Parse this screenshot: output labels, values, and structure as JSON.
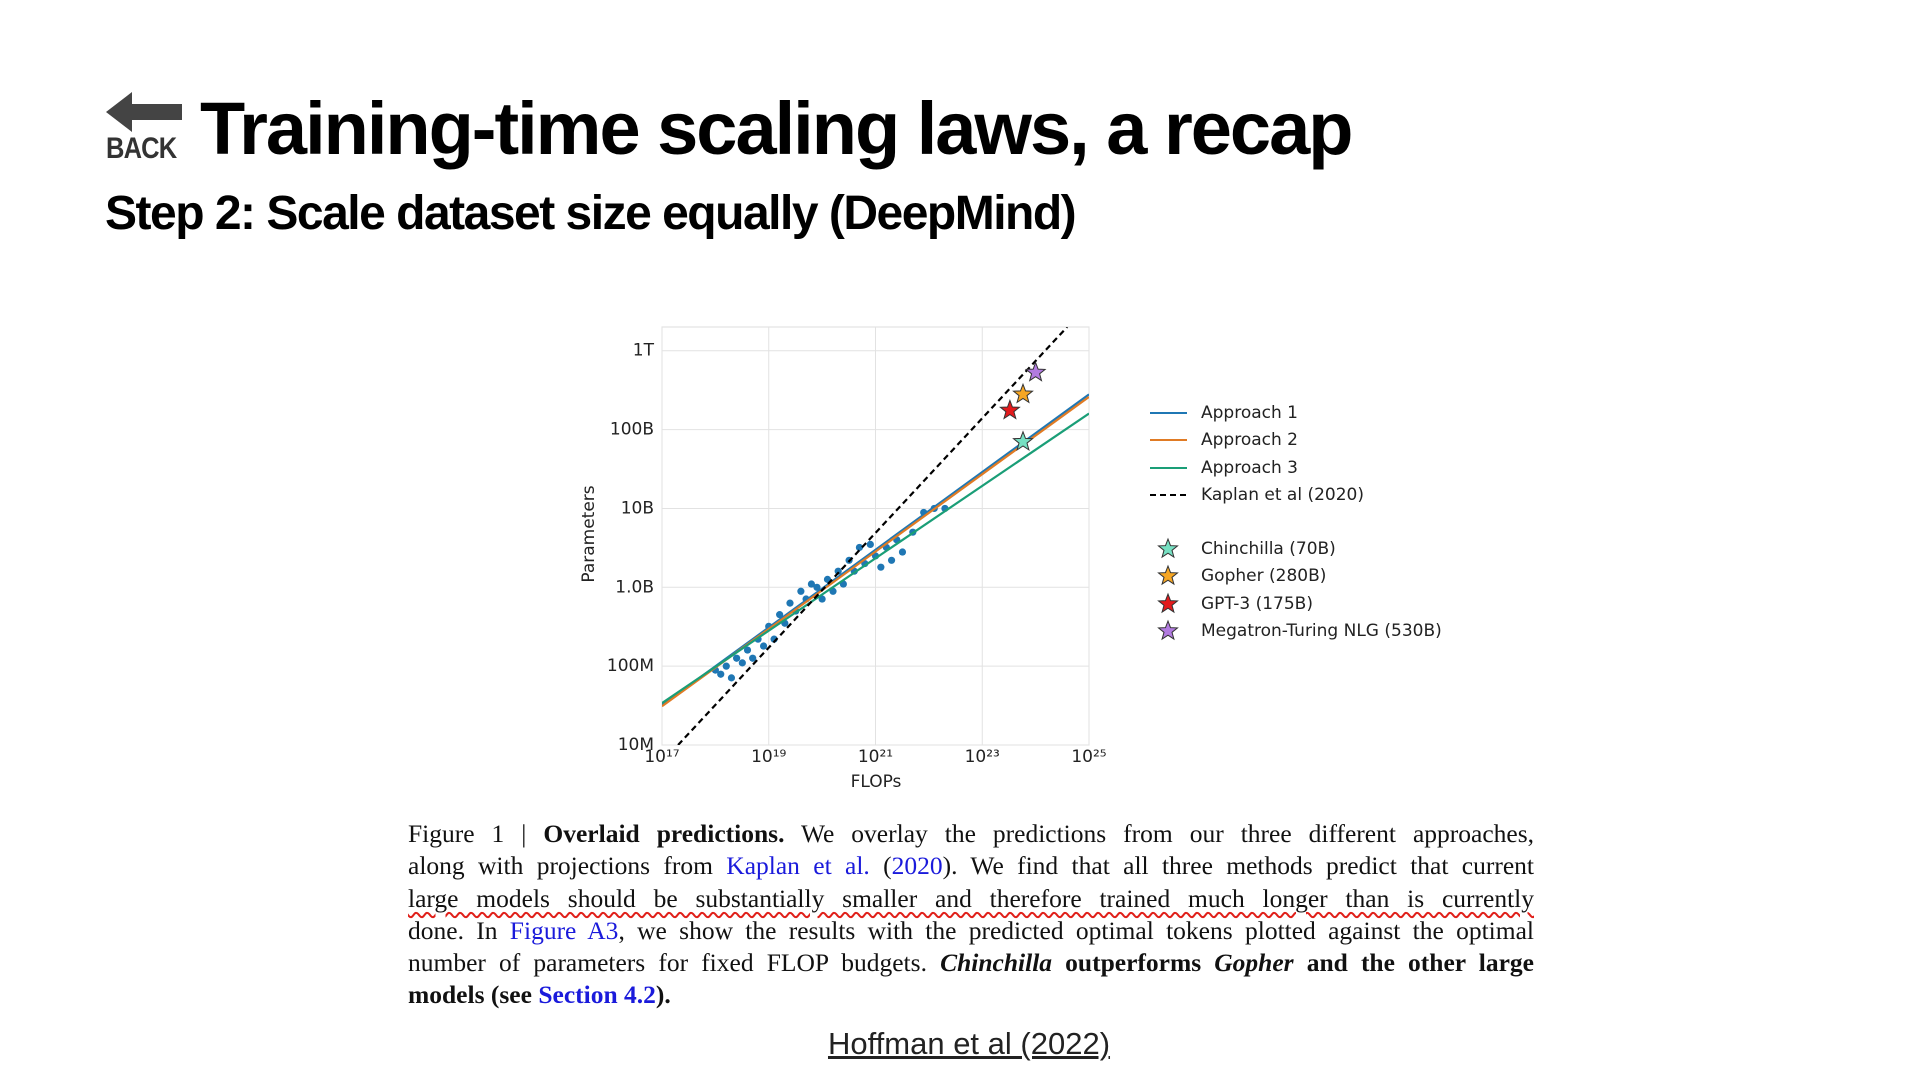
{
  "slide": {
    "back": "BACK",
    "title": "Training-time scaling laws, a recap",
    "subtitle": "Step 2: Scale dataset size equally (DeepMind)",
    "caption": {
      "lines": [
        [
          "Figure 1 | ",
          "Overlaid predictions.",
          " We overlay the predictions from our three different approaches,"
        ],
        [
          "along with projections from ",
          "Kaplan et al.",
          " (",
          "2020",
          "). We find that all three methods predict that current"
        ],
        [
          "large models should be substantially smaller and therefore trained much longer than is currently"
        ],
        [
          "done. In ",
          "Figure A3",
          ", we show the results with the predicted optimal tokens plotted against the optimal"
        ],
        [
          "number of parameters for fixed FLOP budgets. ",
          "Chinchilla",
          " outperforms ",
          "Gopher",
          " and the other large"
        ],
        [
          "models (see ",
          "Section 4.2",
          ")."
        ]
      ]
    },
    "citation": "Hoffman et al (2022)"
  },
  "chart_data": {
    "type": "line",
    "xlabel": "FLOPs",
    "ylabel": "Parameters",
    "log_x": true,
    "log_y": true,
    "grid": true,
    "xlim": [
      1e+17,
      1e+25
    ],
    "ylim": [
      10000000.0,
      2000000000000.0
    ],
    "xticks": [
      {
        "value": 1e+17,
        "label": "10¹⁷"
      },
      {
        "value": 1e+19,
        "label": "10¹⁹"
      },
      {
        "value": 1e+21,
        "label": "10²¹"
      },
      {
        "value": 1e+23,
        "label": "10²³"
      },
      {
        "value": 1e+25,
        "label": "10²⁵"
      }
    ],
    "yticks": [
      {
        "value": 10000000.0,
        "label": "10M"
      },
      {
        "value": 100000000.0,
        "label": "100M"
      },
      {
        "value": 1000000000.0,
        "label": "1.0B"
      },
      {
        "value": 10000000000.0,
        "label": "10B"
      },
      {
        "value": 100000000000.0,
        "label": "100B"
      },
      {
        "value": 1000000000000.0,
        "label": "1T"
      }
    ],
    "series": [
      {
        "name": "Approach 1",
        "color": "#1f77b4",
        "style": "solid",
        "x": [
          1e+17,
          1e+25
        ],
        "values": [
          32000000.0,
          280000000000.0
        ]
      },
      {
        "name": "Approach 2",
        "color": "#e07b24",
        "style": "solid",
        "x": [
          1e+17,
          1e+25
        ],
        "values": [
          31000000.0,
          260000000000.0
        ]
      },
      {
        "name": "Approach 3",
        "color": "#1a9e77",
        "style": "solid",
        "x": [
          1e+17,
          1e+25
        ],
        "values": [
          34000000.0,
          160000000000.0
        ]
      },
      {
        "name": "Kaplan et al (2020)",
        "color": "#000000",
        "style": "dashed",
        "x": [
          2e+17,
          3.9e+24
        ],
        "values": [
          10000000.0,
          2000000000000.0
        ]
      }
    ],
    "markers": [
      {
        "name": "Chinchilla (70B)",
        "color": "#76e0c2",
        "x": 5.8e+23,
        "y": 70000000000.0
      },
      {
        "name": "Gopher (280B)",
        "color": "#f6a623",
        "x": 5.8e+23,
        "y": 280000000000.0
      },
      {
        "name": "GPT-3 (175B)",
        "color": "#e31a1c",
        "x": 3.3e+23,
        "y": 175000000000.0
      },
      {
        "name": "Megatron-Turing NLG (530B)",
        "color": "#b27be0",
        "x": 1e+24,
        "y": 530000000000.0
      }
    ],
    "points": {
      "color": "#1f77b4",
      "x": [
        1e+18,
        1.26e+18,
        1.6e+18,
        2e+18,
        2.5e+18,
        3.2e+18,
        4e+18,
        5e+18,
        6.3e+18,
        8e+18,
        1e+19,
        1.26e+19,
        1.6e+19,
        2e+19,
        2.5e+19,
        3.2e+19,
        4e+19,
        5e+19,
        6.3e+19,
        8e+19,
        1e+20,
        1.26e+20,
        1.6e+20,
        2e+20,
        2.5e+20,
        3.2e+20,
        4e+20,
        5e+20,
        6.3e+20,
        8e+20,
        1e+21,
        1.26e+21,
        1.6e+21,
        2e+21,
        2.5e+21,
        3.2e+21,
        5e+21,
        8e+21,
        1.26e+22,
        2e+22
      ],
      "y": [
        89000000.0,
        79000000.0,
        100000000.0,
        71000000.0,
        126000000.0,
        110000000.0,
        160000000.0,
        126000000.0,
        220000000.0,
        180000000.0,
        320000000.0,
        220000000.0,
        450000000.0,
        350000000.0,
        630000000.0,
        500000000.0,
        890000000.0,
        710000000.0,
        1100000000.0,
        1000000000.0,
        710000000.0,
        1260000000.0,
        890000000.0,
        1600000000.0,
        1100000000.0,
        2200000000.0,
        1600000000.0,
        3200000000.0,
        2000000000.0,
        3500000000.0,
        2500000000.0,
        1800000000.0,
        3200000000.0,
        2200000000.0,
        4000000000.0,
        2800000000.0,
        5000000000.0,
        8900000000.0,
        10000000000.0,
        10000000000.0
      ]
    }
  }
}
